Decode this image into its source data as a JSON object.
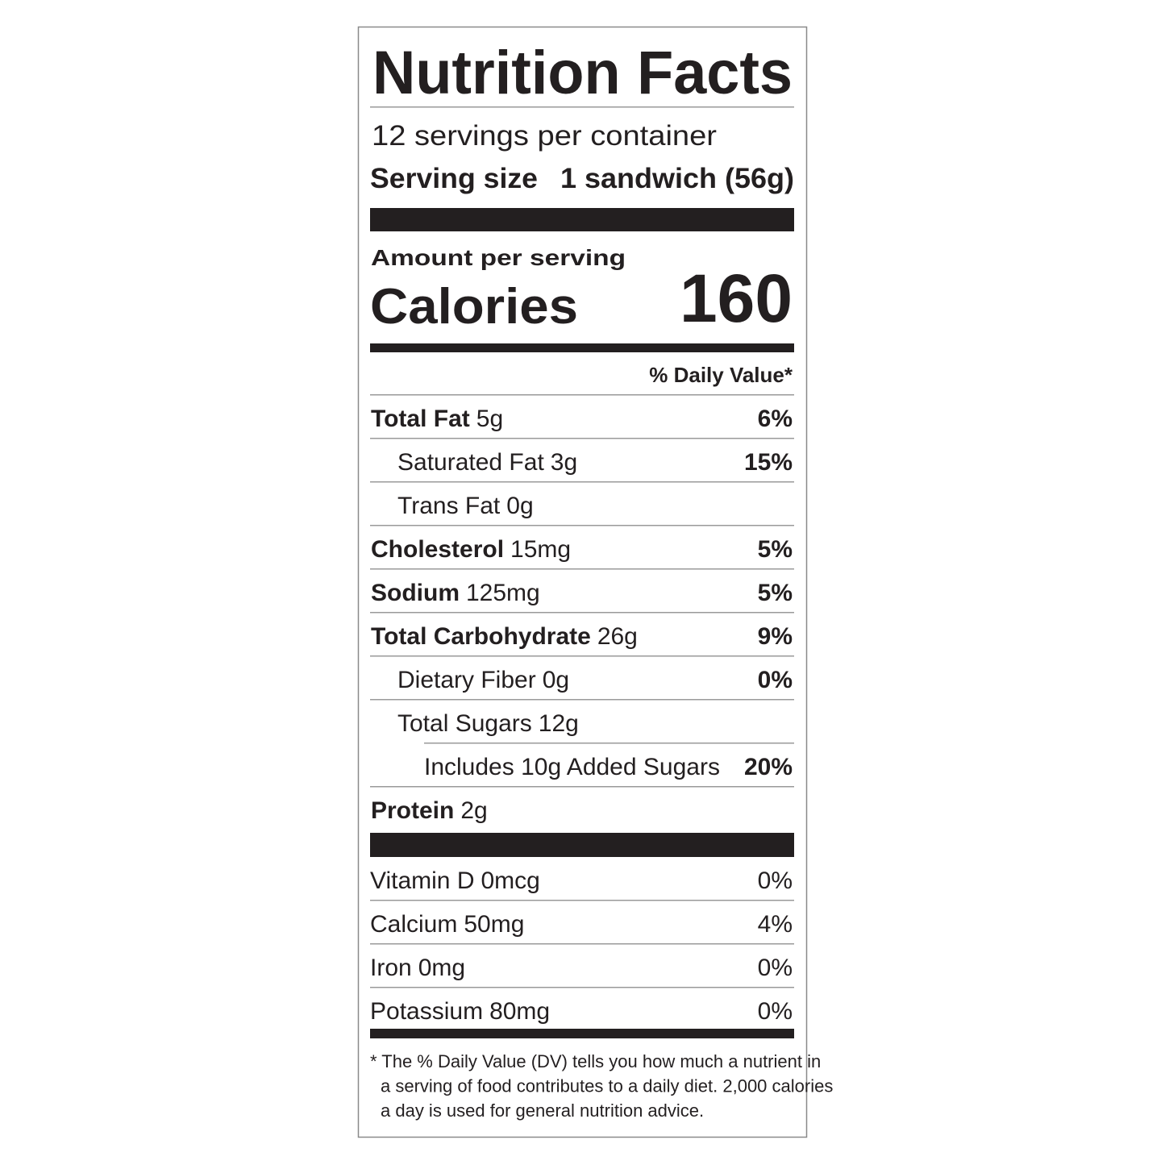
{
  "header": {
    "title": "Nutrition Facts",
    "servings": "12 servings per container",
    "serving_size_label": "Serving size",
    "serving_size_value": "1 sandwich (56g)"
  },
  "calories": {
    "amount_label": "Amount per serving",
    "label": "Calories",
    "value": "160"
  },
  "daily_value_header": "% Daily Value*",
  "nutrients": [
    {
      "name": "Total Fat",
      "amount": "5g",
      "dv": "6%"
    },
    {
      "name": "Saturated Fat",
      "amount": "3g",
      "dv": "15%"
    },
    {
      "name": "Trans Fat",
      "amount": "0g"
    },
    {
      "name": "Cholesterol",
      "amount": "15mg",
      "dv": "5%"
    },
    {
      "name": "Sodium",
      "amount": "125mg",
      "dv": "5%"
    },
    {
      "name": "Total Carbohydrate",
      "amount": "26g",
      "dv": "9%"
    },
    {
      "name": "Dietary Fiber",
      "amount": "0g",
      "dv": "0%"
    },
    {
      "name": "Total Sugars",
      "amount": "12g"
    },
    {
      "name": "Includes 10g Added Sugars",
      "dv": "20%"
    },
    {
      "name": "Protein",
      "amount": "2g"
    }
  ],
  "vitamins": [
    {
      "name": "Vitamin D",
      "amount": "0mcg",
      "dv": "0%"
    },
    {
      "name": "Calcium",
      "amount": "50mg",
      "dv": "4%"
    },
    {
      "name": "Iron",
      "amount": "0mg",
      "dv": "0%"
    },
    {
      "name": "Potassium",
      "amount": "80mg",
      "dv": "0%"
    }
  ],
  "footnote": [
    "* The % Daily Value (DV) tells you how much a nutrient in",
    "a serving of food contributes to a daily diet. 2,000 calories",
    "a day is used for general nutrition advice."
  ]
}
